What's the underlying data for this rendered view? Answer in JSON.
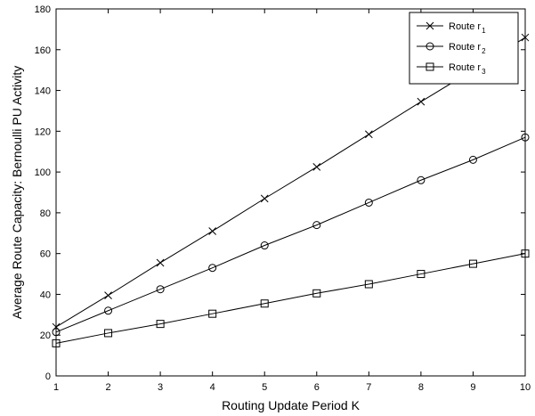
{
  "chart_data": {
    "type": "line",
    "title": "",
    "xlabel": "Routing Update Period K",
    "ylabel": "Average Route Capacity: Bernoulli PU Activity",
    "xlim": [
      1,
      10
    ],
    "ylim": [
      0,
      180
    ],
    "x_ticks": [
      1,
      2,
      3,
      4,
      5,
      6,
      7,
      8,
      9,
      10
    ],
    "y_ticks": [
      0,
      20,
      40,
      60,
      80,
      100,
      120,
      140,
      160,
      180
    ],
    "grid": false,
    "legend_position": "top-right",
    "x": [
      1,
      2,
      3,
      4,
      5,
      6,
      7,
      8,
      9,
      10
    ],
    "series": [
      {
        "name_text": "Route r",
        "name_sub": "1",
        "marker": "x",
        "color": "#000000",
        "values": [
          24,
          39.5,
          55.5,
          71,
          87,
          102.5,
          118.5,
          134.5,
          150,
          166
        ]
      },
      {
        "name_text": "Route r",
        "name_sub": "2",
        "marker": "o",
        "color": "#000000",
        "values": [
          21.5,
          32,
          42.5,
          53,
          64,
          74,
          85,
          96,
          106,
          117
        ]
      },
      {
        "name_text": "Route r",
        "name_sub": "3",
        "marker": "s",
        "color": "#000000",
        "values": [
          16,
          21,
          25.5,
          30.5,
          35.5,
          40.5,
          45,
          50,
          55,
          60
        ]
      }
    ]
  }
}
